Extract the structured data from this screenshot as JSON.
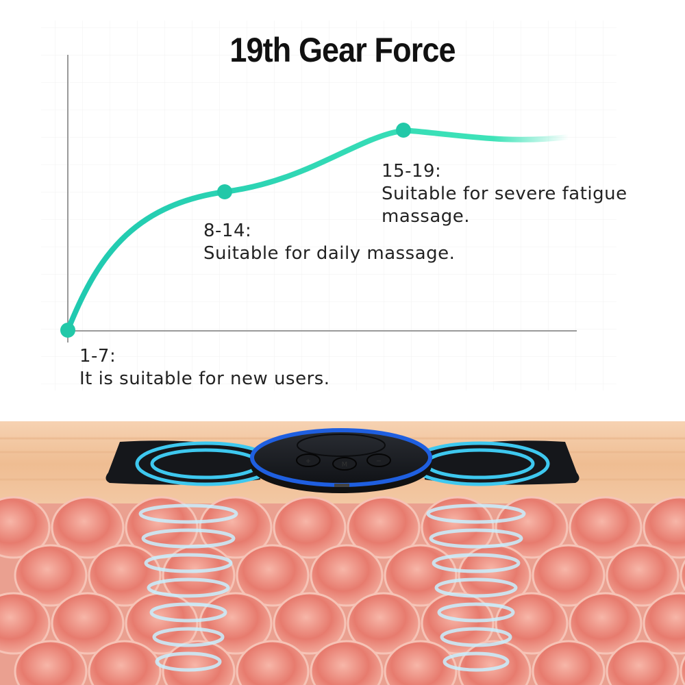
{
  "title": "19th Gear Force",
  "levels": [
    {
      "range": "1-7:",
      "description": "It is suitable for new users."
    },
    {
      "range": "8-14:",
      "description": "Suitable for daily massage."
    },
    {
      "range": "15-19:",
      "description": "Suitable for severe fatigue massage."
    }
  ],
  "device": {
    "buttons": [
      "+",
      "M",
      "−"
    ]
  },
  "colors": {
    "curve": "#2fd6b4",
    "device_ring": "#1f5fe0",
    "pad_lines": "#3ec8ef",
    "skin": "#f2c7a0",
    "muscle": "#e88478"
  }
}
